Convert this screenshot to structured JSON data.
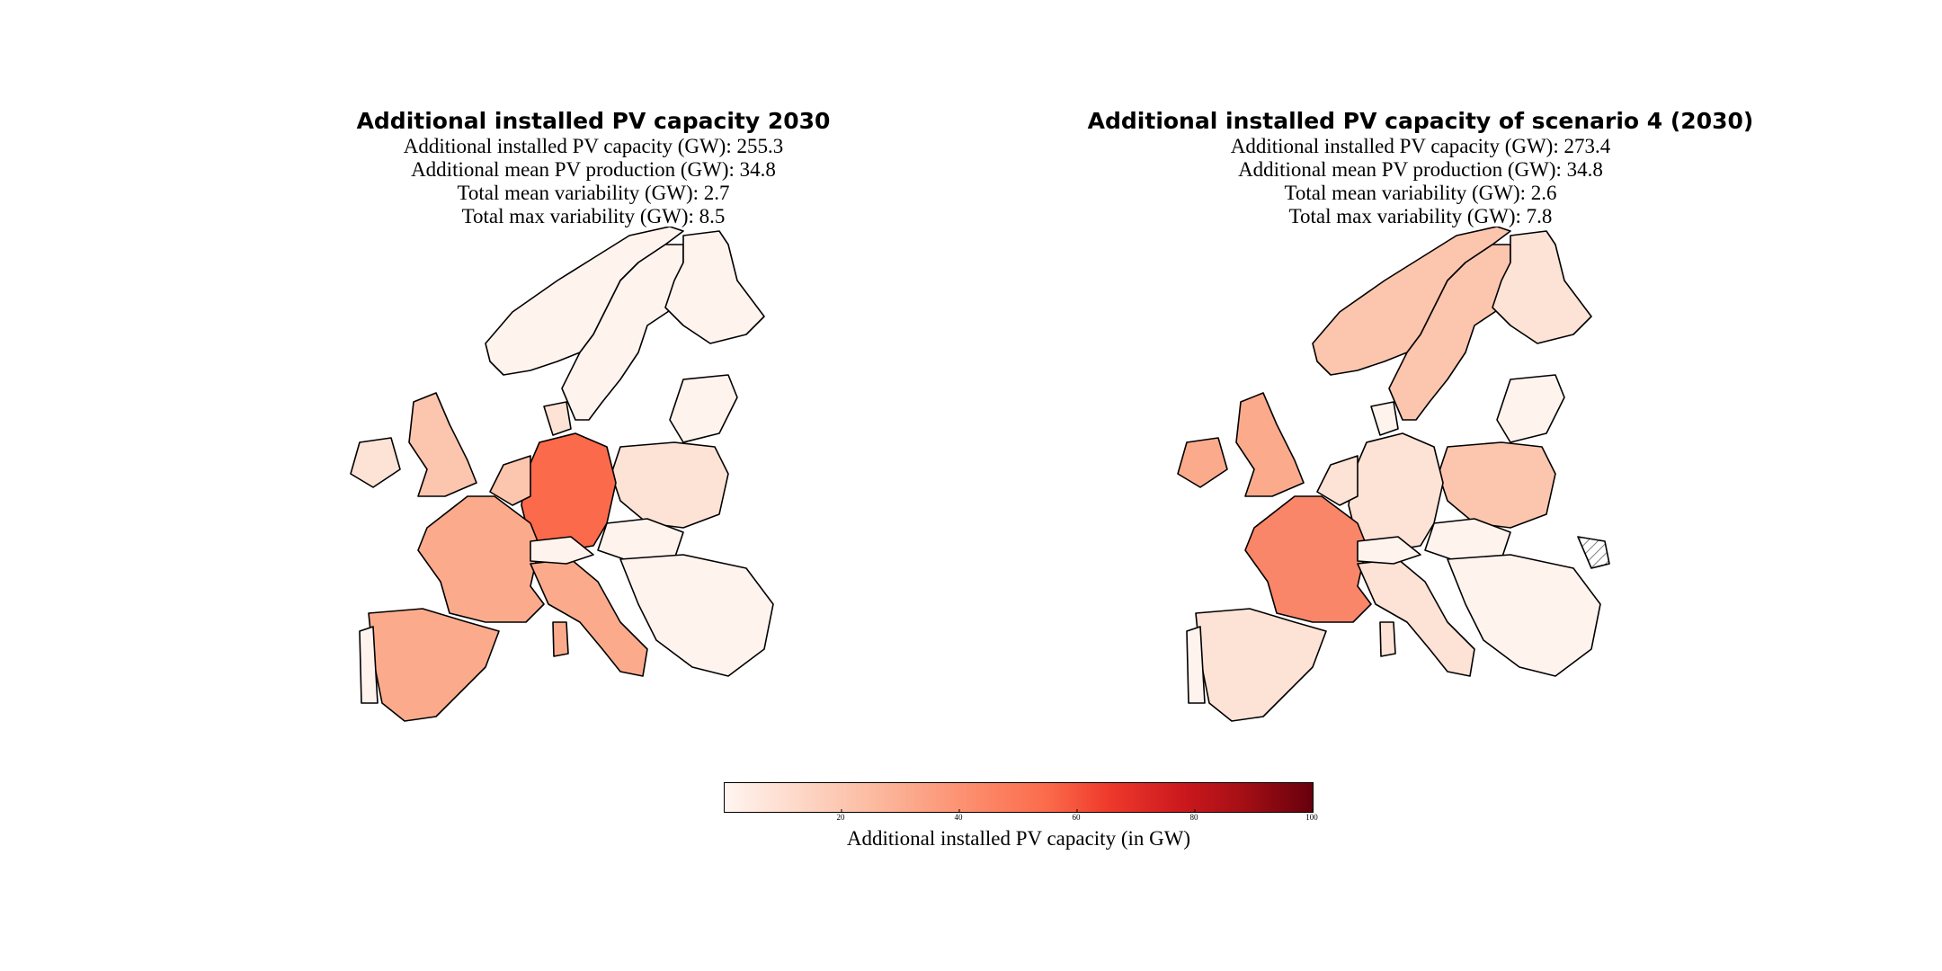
{
  "panels": [
    {
      "title": "Additional installed PV capacity 2030",
      "stats": [
        "Additional installed PV capacity (GW): 255.3",
        "Additional mean PV production (GW): 34.8",
        "Total mean variability (GW): 2.7",
        "Total max variability (GW): 8.5"
      ]
    },
    {
      "title": "Additional installed PV capacity of scenario 4 (2030)",
      "stats": [
        "Additional installed PV capacity (GW): 273.4",
        "Additional mean PV production (GW): 34.8",
        "Total mean variability (GW): 2.6",
        "Total max variability (GW): 7.8"
      ]
    }
  ],
  "colorbar": {
    "label": "Additional installed PV capacity (in GW)",
    "ticks": [
      "20",
      "40",
      "60",
      "80",
      "100"
    ],
    "range": [
      0,
      100
    ],
    "colormap": "Reds"
  },
  "colors": {
    "very_light": "#fff3ee",
    "light": "#fde2d6",
    "medium_light": "#fcc5ae",
    "medium": "#fbab8c",
    "strong": "#f98668",
    "very_strong": "#fb6a4a"
  }
}
